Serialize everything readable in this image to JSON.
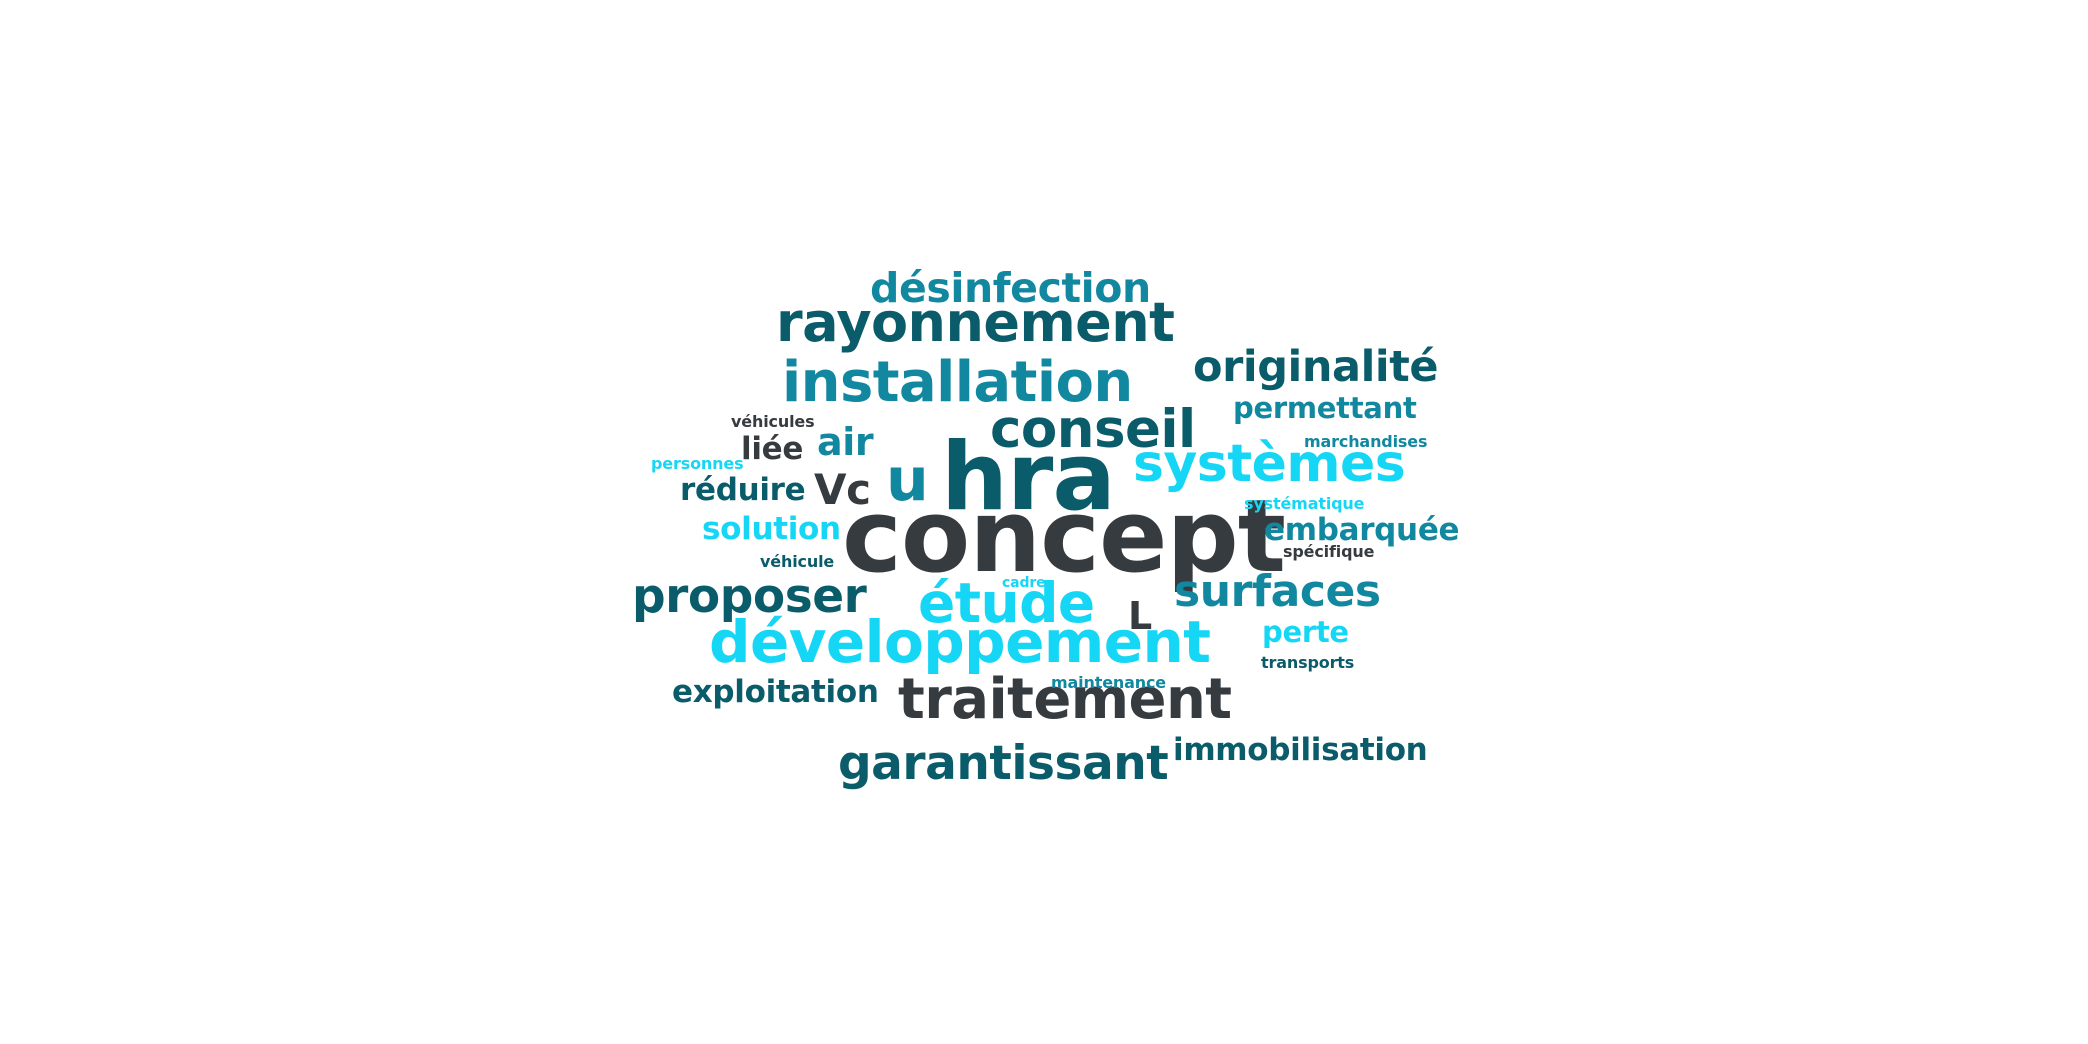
{
  "colors": {
    "dark_gray": "#363b40",
    "dark_teal": "#0b5c6a",
    "mid_teal": "#1188a0",
    "cyan": "#16d6f6"
  },
  "words": [
    {
      "id": "concept",
      "text": "concept",
      "color": "dark_gray"
    },
    {
      "id": "hra",
      "text": "hra",
      "color": "dark_teal"
    },
    {
      "id": "developpement",
      "text": "développement",
      "color": "cyan"
    },
    {
      "id": "traitement",
      "text": "traitement",
      "color": "dark_gray"
    },
    {
      "id": "installation",
      "text": "installation",
      "color": "mid_teal"
    },
    {
      "id": "rayonnement",
      "text": "rayonnement",
      "color": "dark_teal"
    },
    {
      "id": "systemes",
      "text": "systèmes",
      "color": "cyan"
    },
    {
      "id": "etude",
      "text": "étude",
      "color": "cyan"
    },
    {
      "id": "conseil",
      "text": "conseil",
      "color": "dark_teal"
    },
    {
      "id": "garantissant",
      "text": "garantissant",
      "color": "dark_teal"
    },
    {
      "id": "originalite",
      "text": "originalité",
      "color": "dark_teal"
    },
    {
      "id": "proposer",
      "text": "proposer",
      "color": "dark_teal"
    },
    {
      "id": "surfaces",
      "text": "surfaces",
      "color": "mid_teal"
    },
    {
      "id": "desinfection",
      "text": "désinfection",
      "color": "mid_teal"
    },
    {
      "id": "u",
      "text": "u",
      "color": "mid_teal"
    },
    {
      "id": "vc",
      "text": "Vc",
      "color": "dark_gray"
    },
    {
      "id": "immobilisation",
      "text": "immobilisation",
      "color": "dark_teal"
    },
    {
      "id": "exploitation",
      "text": "exploitation",
      "color": "dark_teal"
    },
    {
      "id": "permettant",
      "text": "permettant",
      "color": "mid_teal"
    },
    {
      "id": "embarquee",
      "text": "embarquée",
      "color": "mid_teal"
    },
    {
      "id": "air",
      "text": "air",
      "color": "mid_teal"
    },
    {
      "id": "solution",
      "text": "solution",
      "color": "cyan"
    },
    {
      "id": "reduire",
      "text": "réduire",
      "color": "dark_teal"
    },
    {
      "id": "perte",
      "text": "perte",
      "color": "cyan"
    },
    {
      "id": "l",
      "text": "L",
      "color": "dark_gray"
    },
    {
      "id": "liee",
      "text": "liée",
      "color": "dark_gray"
    },
    {
      "id": "vehicules",
      "text": "véhicules",
      "color": "dark_gray"
    },
    {
      "id": "personnes",
      "text": "personnes",
      "color": "cyan"
    },
    {
      "id": "marchandises",
      "text": "marchandises",
      "color": "mid_teal"
    },
    {
      "id": "systematique",
      "text": "systématique",
      "color": "cyan"
    },
    {
      "id": "specifique",
      "text": "spécifique",
      "color": "dark_gray"
    },
    {
      "id": "vehicule",
      "text": "véhicule",
      "color": "dark_teal"
    },
    {
      "id": "cadre",
      "text": "cadre",
      "color": "cyan"
    },
    {
      "id": "transports",
      "text": "transports",
      "color": "dark_teal"
    },
    {
      "id": "maintenance",
      "text": "maintenance",
      "color": "mid_teal"
    }
  ]
}
